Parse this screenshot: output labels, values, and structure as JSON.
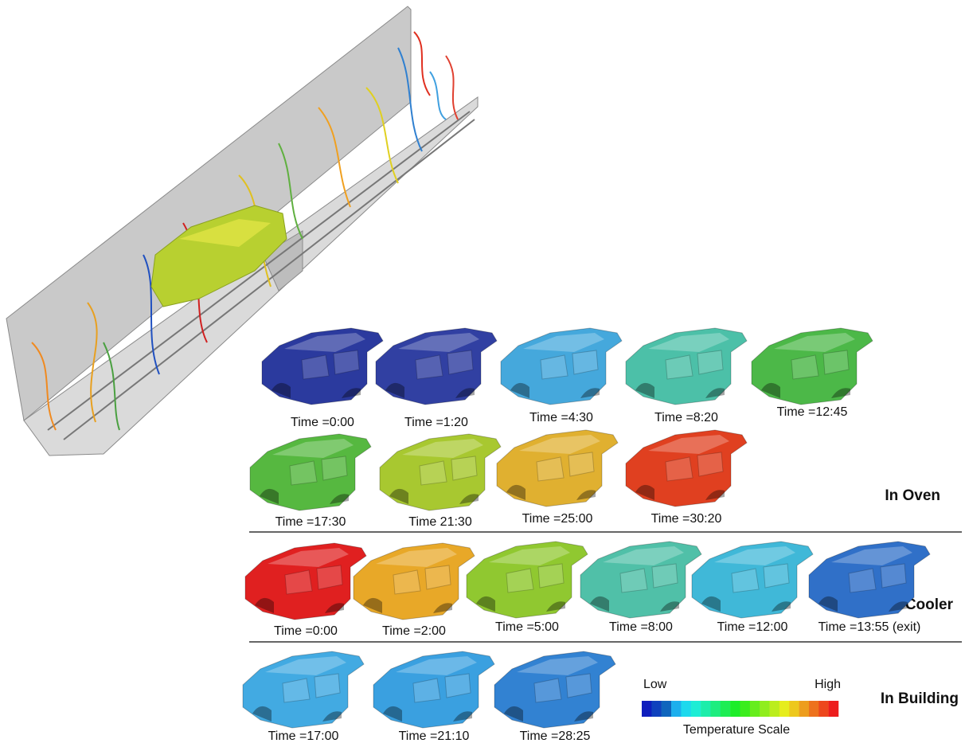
{
  "oven": {
    "label": "In Oven",
    "frames": [
      "Time =0:00",
      "Time =1:20",
      "Time =4:30",
      "Time =8:20",
      "Time =12:45",
      "Time =17:30",
      "Time 21:30",
      "Time =25:00",
      "Time =30:20"
    ]
  },
  "cooler": {
    "label": "In Cooler",
    "frames": [
      "Time =0:00",
      "Time =2:00",
      "Time =5:00",
      "Time =8:00",
      "Time =12:00",
      "Time =13:55 (exit)"
    ]
  },
  "building": {
    "label": "In Building",
    "frames": [
      "Time =17:00",
      "Time =21:10",
      "Time =28:25"
    ]
  },
  "scale": {
    "low": "Low",
    "high": "High",
    "title": "Temperature Scale"
  }
}
